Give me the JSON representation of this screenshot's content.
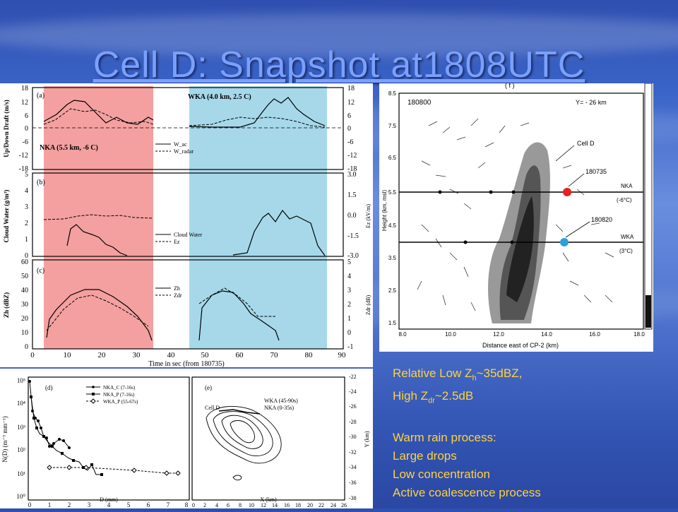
{
  "slide": {
    "title": "Cell D: Snapshot at1808UTC",
    "notes": {
      "line1_prefix": "Relative Low Z",
      "line1_sub": "h",
      "line1_suffix": "~35dBZ,",
      "line2_prefix": "High Z",
      "line2_sub": "dr",
      "line2_suffix": "~2.5dB",
      "heading": "Warm rain process:",
      "item1": "Large drops",
      "item2": "Low concentration",
      "item3": "Active coalescence process"
    }
  },
  "time_series": {
    "panel_a": {
      "tag": "(a)",
      "ylabel": "Up/Down Draft (m/s)",
      "left_ticks": [
        "18",
        "12",
        "6",
        "0",
        "-6",
        "-12",
        "-18"
      ],
      "right_ticks": [
        "18",
        "12",
        "6",
        "0",
        "-6",
        "-12",
        "-18"
      ],
      "nka_label": "NKA (5.5 km, -6 C)",
      "wka_label": "WKA (4.0 km, 2.5 C)",
      "legend": [
        "W_ac",
        "W_radar"
      ]
    },
    "panel_b": {
      "tag": "(b)",
      "ylabel": "Cloud Water (g/m³)",
      "right_label": "Ez (kV/m)",
      "left_ticks": [
        "5",
        "4",
        "3",
        "2",
        "1",
        "0"
      ],
      "right_ticks": [
        "3.0",
        "1.5",
        "0.0",
        "-1.5",
        "-3.0"
      ],
      "legend": [
        "Cloud Water",
        "Ez"
      ]
    },
    "panel_c": {
      "tag": "(c)",
      "ylabel": "Zh (dBZ)",
      "right_label": "Zdr (dB)",
      "left_ticks": [
        "60",
        "50",
        "40",
        "30",
        "20",
        "10",
        "0"
      ],
      "right_ticks": [
        "5",
        "4",
        "3",
        "2",
        "1",
        "0",
        "-1"
      ],
      "legend": [
        "Zh",
        "Zdr"
      ]
    },
    "x_ticks": [
      "0",
      "10",
      "20",
      "30",
      "40",
      "50",
      "60",
      "70",
      "80",
      "90"
    ],
    "xlabel": "Time in sec (from 180735)",
    "highlight_colors": {
      "nka": "#f4a0a0",
      "wka": "#a6d8ea"
    }
  },
  "cross_section": {
    "panel_tag": "( f )",
    "time": "180800",
    "y_label": "Y= - 26 km",
    "cell_label": "Cell D",
    "marker1": "180735",
    "marker2": "180820",
    "nka_label": "NKA",
    "nka_temp": "(-6°C)",
    "wka_label": "WKA",
    "wka_temp": "(3°C)",
    "ylabel": "Height (km, msl)",
    "xlabel": "Distance east of CP-2 (km)",
    "x_ticks": [
      "8.0",
      "10.0",
      "12.0",
      "14.0",
      "16.0",
      "18.0"
    ],
    "y_ticks": [
      "8.5",
      "7.5",
      "6.5",
      "5.5",
      "4.5",
      "3.5",
      "2.5",
      "1.5"
    ],
    "red_marker_color": "#e82020",
    "blue_marker_color": "#2aa0e0"
  },
  "dsd": {
    "tag": "(d)",
    "ylabel": "N(D) (m⁻³ mm⁻¹)",
    "xlabel": "D (mm)",
    "x_ticks": [
      "0",
      "1",
      "2",
      "3",
      "4",
      "5",
      "6",
      "7",
      "8"
    ],
    "y_ticks": [
      "10⁵",
      "10⁴",
      "10³",
      "10²",
      "10¹",
      "10⁰"
    ],
    "legend": [
      "NKA_C (7-16s)",
      "NKA_P (7-16s)",
      "WKA_P (55-67s)"
    ]
  },
  "track": {
    "tag": "(e)",
    "cell_label": "Cell D",
    "legend": [
      "WKA (45-90s)",
      "NKA (0-35s)"
    ],
    "xlabel": "X (km)",
    "ylabel": "Y (km)",
    "x_ticks": [
      "0",
      "2",
      "4",
      "6",
      "8",
      "10",
      "12",
      "14",
      "16",
      "18",
      "20",
      "22",
      "24",
      "26"
    ],
    "y_ticks": [
      "-22",
      "-24",
      "-26",
      "-28",
      "-30",
      "-32",
      "-34",
      "-36",
      "-38"
    ]
  }
}
